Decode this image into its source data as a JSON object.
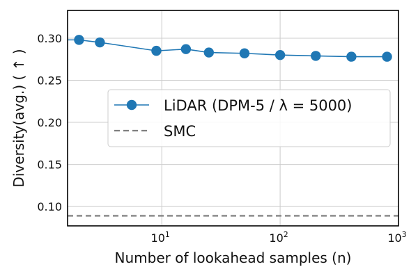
{
  "chart_data": {
    "type": "line",
    "xlabel": "Number of lookahead samples (n)",
    "ylabel": "Diversity(avg.) ( ↑ )",
    "xscale": "log",
    "xlim": [
      1.6,
      1000
    ],
    "ylim": [
      0.077,
      0.333
    ],
    "grid": true,
    "legend_position": "center-right",
    "x_ticks": [
      {
        "value": 10,
        "base": "10",
        "exp": "1"
      },
      {
        "value": 100,
        "base": "10",
        "exp": "2"
      },
      {
        "value": 1000,
        "base": "10",
        "exp": "3"
      }
    ],
    "y_ticks": [
      0.1,
      0.15,
      0.2,
      0.25,
      0.3
    ],
    "y_tick_labels": [
      "0.10",
      "0.15",
      "0.20",
      "0.25",
      "0.30"
    ],
    "series": [
      {
        "name": "LiDAR (DPM-5 / λ = 5000)",
        "color": "#1f77b4",
        "marker": "circle",
        "x": [
          2,
          3,
          9,
          16,
          25,
          50,
          100,
          200,
          400,
          800
        ],
        "y": [
          0.298,
          0.295,
          0.285,
          0.287,
          0.283,
          0.282,
          0.28,
          0.279,
          0.278,
          0.278
        ]
      },
      {
        "name": "SMC",
        "color": "#7f7f7f",
        "style": "dashed",
        "y": 0.089
      }
    ]
  }
}
